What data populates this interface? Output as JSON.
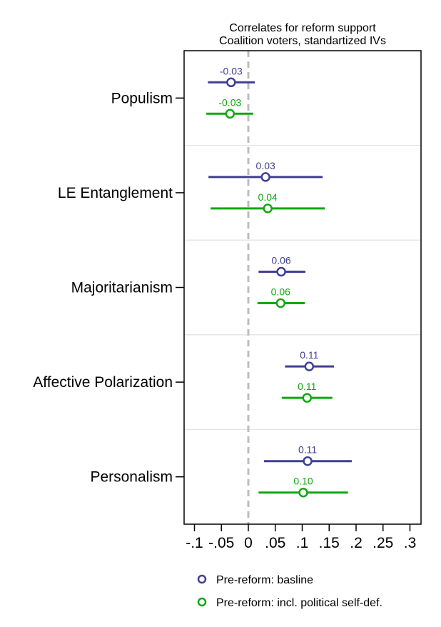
{
  "chart_data": {
    "type": "scatter",
    "subtype": "coefficient-plot",
    "title": "Correlates for reform support",
    "subtitle": "Coalition voters, standartized IVs",
    "xlabel": "",
    "ylabel": "",
    "xlim": [
      -0.11,
      0.315
    ],
    "xticks": [
      -0.1,
      -0.05,
      0,
      0.05,
      0.1,
      0.15,
      0.2,
      0.25,
      0.3
    ],
    "xtick_labels": [
      "-.1",
      "-.05",
      "0",
      ".05",
      ".1",
      ".15",
      ".2",
      ".25",
      ".3"
    ],
    "reference_line": 0,
    "grid": "horizontal separators between categories",
    "legend_position": "bottom",
    "categories": [
      "Populism",
      "LE Entanglement",
      "Majoritarianism",
      "Affective Polarization",
      "Personalism"
    ],
    "series": [
      {
        "name": "Pre-reform: basline",
        "color": "#3f3f94",
        "estimates": [
          -0.032,
          0.032,
          0.061,
          0.113,
          0.11
        ],
        "ci_lower": [
          -0.075,
          -0.074,
          0.019,
          0.068,
          0.029
        ],
        "ci_upper": [
          0.012,
          0.138,
          0.106,
          0.159,
          0.192
        ],
        "labels": [
          "-0.03",
          "0.03",
          "0.06",
          "0.11",
          "0.11"
        ]
      },
      {
        "name": "Pre-reform: incl. political self-def.",
        "color": "#10a810",
        "estimates": [
          -0.034,
          0.036,
          0.06,
          0.109,
          0.102
        ],
        "ci_lower": [
          -0.078,
          -0.07,
          0.017,
          0.062,
          0.019
        ],
        "ci_upper": [
          0.009,
          0.142,
          0.105,
          0.156,
          0.185
        ],
        "labels": [
          "-0.03",
          "0.04",
          "0.06",
          "0.11",
          "0.10"
        ]
      }
    ]
  }
}
